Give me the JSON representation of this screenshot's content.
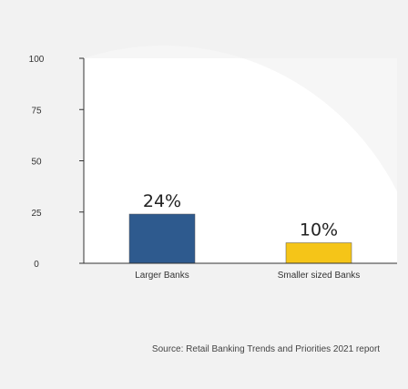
{
  "chart_data": {
    "type": "bar",
    "categories": [
      "Larger Banks",
      "Smaller sized Banks"
    ],
    "values": [
      24,
      10
    ],
    "data_labels": [
      "24%",
      "10%"
    ],
    "colors": {
      "bars": [
        "#2e5a8e",
        "#f5c518"
      ],
      "background": "#f2f2f2",
      "plot_area": "#ffffff",
      "axis": "#333333"
    },
    "title": "",
    "xlabel": "",
    "ylabel": "",
    "ylim": [
      0,
      100
    ],
    "yticks": [
      0,
      25,
      50,
      75,
      100
    ],
    "grid": false,
    "legend": "none"
  },
  "source": "Source: Retail Banking Trends and Priorities 2021 report"
}
